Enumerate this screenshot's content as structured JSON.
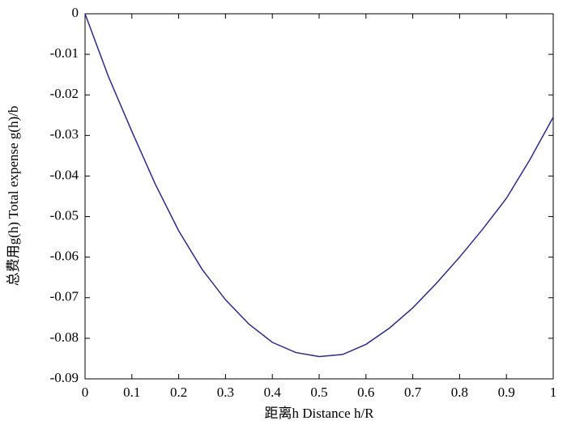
{
  "chart_data": {
    "type": "line",
    "x_label": "距离h Distance h/R",
    "y_label": "总费用g(h) Total expense g(h)/b",
    "x": [
      0,
      0.05,
      0.1,
      0.15,
      0.2,
      0.25,
      0.3,
      0.35,
      0.4,
      0.45,
      0.5,
      0.55,
      0.6,
      0.65,
      0.7,
      0.75,
      0.8,
      0.85,
      0.9,
      0.95,
      1
    ],
    "series": [
      {
        "color": "#2b2b8c",
        "values": [
          0,
          -0.0155,
          -0.029,
          -0.042,
          -0.0535,
          -0.063,
          -0.0705,
          -0.0765,
          -0.081,
          -0.0835,
          -0.0845,
          -0.084,
          -0.0815,
          -0.0775,
          -0.0725,
          -0.0665,
          -0.06,
          -0.053,
          -0.0455,
          -0.036,
          -0.0255
        ]
      }
    ],
    "xlim": [
      0,
      1
    ],
    "xticks": [
      0,
      0.1,
      0.2,
      0.3,
      0.4,
      0.5,
      0.6,
      0.7,
      0.8,
      0.9,
      1
    ],
    "ylim": [
      -0.09,
      0
    ],
    "yticks": [
      0,
      -0.01,
      -0.02,
      -0.03,
      -0.04,
      -0.05,
      -0.06,
      -0.07,
      -0.08,
      -0.09
    ],
    "grid": false
  }
}
